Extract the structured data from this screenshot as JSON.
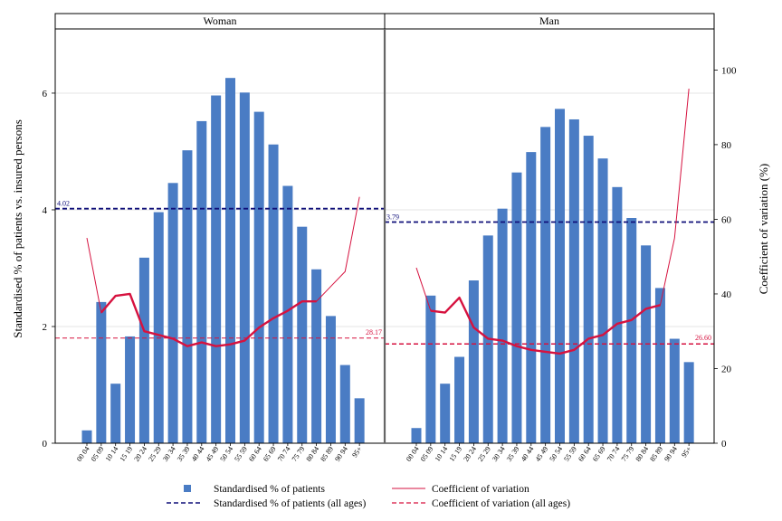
{
  "chart_data": {
    "type": "bar",
    "ylabel": "Standardised % of patients vs. insured persons",
    "y2label": "Coefficient of variation (%)",
    "ylim": [
      0,
      7.1
    ],
    "y2lim": [
      0,
      111
    ],
    "yticks": [
      0,
      2,
      4,
      6
    ],
    "y2ticks": [
      0,
      20,
      40,
      60,
      80,
      100
    ],
    "categories": [
      "00-04",
      "05-09",
      "10-14",
      "15-19",
      "20-24",
      "25-29",
      "30-34",
      "35-39",
      "40-44",
      "45-49",
      "50-54",
      "55-59",
      "60-64",
      "65-69",
      "70-74",
      "75-79",
      "80-84",
      "85-89",
      "90-94",
      "95+"
    ],
    "panels": [
      {
        "title": "Woman",
        "bars": [
          0.22,
          2.42,
          1.02,
          1.83,
          3.18,
          3.96,
          4.46,
          5.02,
          5.52,
          5.96,
          6.26,
          6.01,
          5.68,
          5.12,
          4.41,
          3.71,
          2.98,
          2.18,
          1.34,
          0.77
        ],
        "cv": [
          55,
          35,
          39.5,
          40,
          30,
          29,
          28,
          26,
          27,
          26,
          26.5,
          27.5,
          31,
          33.5,
          35.5,
          38,
          38,
          42,
          46,
          66
        ],
        "cv_bold_from": 1,
        "cv_bold_to": 16,
        "ref_bar": 4.02,
        "ref_bar_label": "4.02",
        "ref_cv": 28.17,
        "ref_cv_label": "28.17"
      },
      {
        "title": "Man",
        "bars": [
          0.26,
          2.53,
          1.02,
          1.48,
          2.79,
          3.56,
          4.02,
          4.64,
          4.99,
          5.42,
          5.73,
          5.55,
          5.27,
          4.88,
          4.39,
          3.86,
          3.39,
          2.66,
          1.79,
          1.39
        ],
        "cv": [
          47,
          35.5,
          35,
          39,
          31,
          28,
          27.5,
          26,
          25,
          24.5,
          24,
          25,
          28,
          29,
          32,
          33,
          36,
          37,
          55,
          95
        ],
        "cv_bold_from": 1,
        "cv_bold_to": 17,
        "ref_bar": 3.79,
        "ref_bar_label": "3.79",
        "ref_cv": 26.6,
        "ref_cv_label": "26.60"
      }
    ],
    "legend": [
      {
        "label": "Standardised % of patients",
        "kind": "bar"
      },
      {
        "label": "Coefficient of variation",
        "kind": "line"
      },
      {
        "label": "Standardised % of patients (all ages)",
        "kind": "dash-blue"
      },
      {
        "label": "Coefficient of variation (all ages)",
        "kind": "dash-red"
      }
    ],
    "colors": {
      "bar": "#4a7cc4",
      "cv": "#d6123f",
      "ref_bar": "#10107a",
      "ref_cv": "#d6123f",
      "grid": "#e6e6e6"
    }
  }
}
